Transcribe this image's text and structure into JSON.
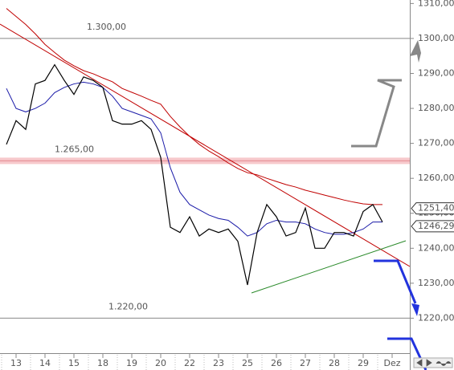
{
  "chart_data": {
    "type": "line",
    "categories": [
      null,
      "13",
      null,
      null,
      "14",
      null,
      null,
      "15",
      null,
      null,
      "18",
      null,
      null,
      "19",
      null,
      null,
      "20",
      null,
      null,
      "22",
      null,
      null,
      "23",
      null,
      null,
      "25",
      null,
      null,
      "26",
      null,
      null,
      "27",
      null,
      null,
      "28",
      null,
      null,
      "29",
      null,
      null,
      "Dez",
      null
    ],
    "series": [
      {
        "color": "#c00000",
        "values": [
          1308.6,
          1306.3,
          1304,
          1301.3,
          1298.3,
          1296,
          1293.8,
          1292.2,
          1290.8,
          1289.9,
          1288.7,
          1287.6,
          1285.7,
          1284.6,
          1283.5,
          1282.3,
          1281.2,
          1277.7,
          1274.7,
          1272,
          1269.7,
          1267.8,
          1266.2,
          1264.4,
          1262.8,
          1261.6,
          1261,
          1260,
          1259.1,
          1258.2,
          1257.5,
          1256.6,
          1255.9,
          1255.2,
          1254.5,
          1253.8,
          1253.2,
          1252.7,
          1252.5,
          1252.5,
          null,
          null
        ]
      },
      {
        "color": "#1a1aa8",
        "values": [
          1285.7,
          1280,
          1279,
          1280,
          1281.5,
          1284.5,
          1286,
          1287,
          1287.5,
          1287,
          1286,
          1283.5,
          1280,
          1279,
          1278,
          1277,
          1273,
          1263,
          1256,
          1252.5,
          1251,
          1249.5,
          1248.5,
          1248,
          1246,
          1243.5,
          1244.5,
          1247,
          1248,
          1247.5,
          1247.5,
          1247,
          1245.5,
          1244.5,
          1244,
          1244,
          1244.5,
          1245.5,
          1247.5,
          1247.5,
          null,
          null
        ]
      },
      {
        "color": "#000000",
        "values": [
          1269.7,
          1276.5,
          1274,
          1287,
          1288,
          1292.5,
          1288,
          1284,
          1289,
          1288,
          1286,
          1276.5,
          1275.5,
          1275.5,
          1276.5,
          1274,
          1266,
          1246,
          1244.5,
          1249,
          1243.5,
          1245.5,
          1244.5,
          1245.5,
          1242,
          1229.5,
          1244.5,
          1252.5,
          1249,
          1243.5,
          1244.5,
          1251.5,
          1240,
          1240,
          1244.5,
          1244.5,
          1243.5,
          1250.5,
          1252.5,
          1247.5,
          null,
          null
        ]
      }
    ],
    "ylim": [
      1210,
      1311
    ],
    "yticks": [
      {
        "value": 1220,
        "label": "1220,000"
      },
      {
        "value": 1230,
        "label": "1230,000"
      },
      {
        "value": 1240,
        "label": "1240,000"
      },
      {
        "value": 1250,
        "label": "1250,000"
      },
      {
        "value": 1260,
        "label": "1260,000"
      },
      {
        "value": 1270,
        "label": "1270,000"
      },
      {
        "value": 1280,
        "label": "1280,000"
      },
      {
        "value": 1290,
        "label": "1290,000"
      },
      {
        "value": 1300,
        "label": "1300,000"
      },
      {
        "value": 1310,
        "label": "1310,000"
      }
    ],
    "levels": [
      {
        "value": 1300,
        "label": "1.300,00"
      },
      {
        "value": 1265,
        "label": "1.265,00",
        "band": true
      },
      {
        "value": 1220,
        "label": "1.220,00"
      }
    ],
    "price_tags": [
      {
        "value": 1251.4,
        "label": "1251,40"
      },
      {
        "value": 1246.29,
        "label": "1246,29"
      }
    ]
  }
}
